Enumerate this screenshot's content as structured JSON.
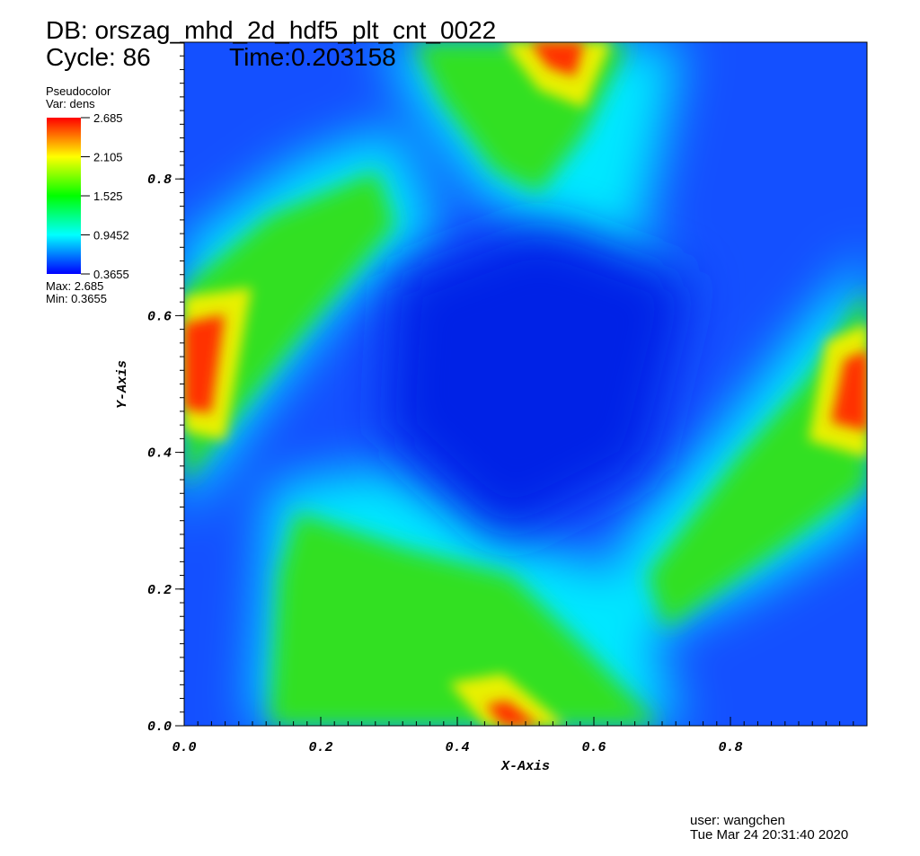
{
  "chart_data": {
    "type": "pseudocolor",
    "title": "DB: orszag_mhd_2d_hdf5_plt_cnt_0022",
    "cycle": "Cycle: 86",
    "time": "Time:0.203158",
    "xlabel": "X-Axis",
    "ylabel": "Y-Axis",
    "xlim": [
      0,
      1
    ],
    "ylim": [
      0,
      1
    ],
    "xticks": [
      {
        "value": 0,
        "label": "0.0"
      },
      0.2,
      0.4,
      0.6,
      0.8
    ],
    "yticks": [
      {
        "value": 0,
        "label": "0.0"
      },
      0.2,
      0.4,
      0.6,
      0.8
    ],
    "legend": {
      "title": "Pseudocolor",
      "variable": "Var: dens",
      "lim": [
        0.3655,
        2.685
      ],
      "ticks": [
        0.3655,
        0.9452,
        1.525,
        2.105,
        2.685
      ],
      "colors": [
        "#0000ff",
        "#00ffff",
        "#00ff00",
        "#ffff00",
        "#ff0000"
      ],
      "max": "Max:  2.685",
      "min": "Min:  0.3655"
    },
    "user": "user: wangchen",
    "date": "Tue Mar 24 20:31:40 2020"
  }
}
